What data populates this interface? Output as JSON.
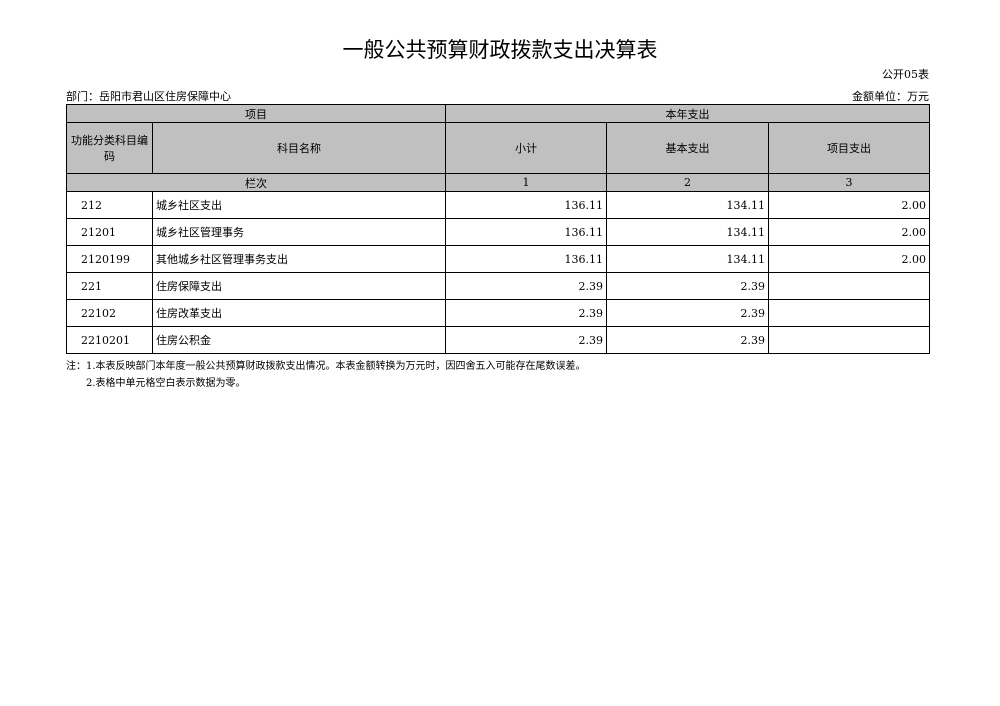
{
  "title": "一般公共预算财政拨款支出决算表",
  "table_code": "公开05表",
  "department": "部门：岳阳市君山区住房保障中心",
  "unit": "金额单位：万元",
  "header": {
    "item": "项目",
    "current_year": "本年支出",
    "code": "功能分类科目编码",
    "name": "科目名称",
    "subtotal": "小计",
    "basic": "基本支出",
    "project": "项目支出",
    "column_index": "栏次",
    "c1": "1",
    "c2": "2",
    "c3": "3"
  },
  "rows": [
    {
      "code": "212",
      "name": "城乡社区支出",
      "subtotal": "136.11",
      "basic": "134.11",
      "project": "2.00"
    },
    {
      "code": "21201",
      "name": "城乡社区管理事务",
      "subtotal": "136.11",
      "basic": "134.11",
      "project": "2.00"
    },
    {
      "code": "2120199",
      "name": "其他城乡社区管理事务支出",
      "subtotal": "136.11",
      "basic": "134.11",
      "project": "2.00"
    },
    {
      "code": "221",
      "name": "住房保障支出",
      "subtotal": "2.39",
      "basic": "2.39",
      "project": ""
    },
    {
      "code": "22102",
      "name": "住房改革支出",
      "subtotal": "2.39",
      "basic": "2.39",
      "project": ""
    },
    {
      "code": "2210201",
      "name": "住房公积金",
      "subtotal": "2.39",
      "basic": "2.39",
      "project": ""
    }
  ],
  "notes": [
    "注：1.本表反映部门本年度一般公共预算财政拨款支出情况。本表金额转换为万元时，因四舍五入可能存在尾数误差。",
    "2.表格中单元格空白表示数据为零。"
  ]
}
